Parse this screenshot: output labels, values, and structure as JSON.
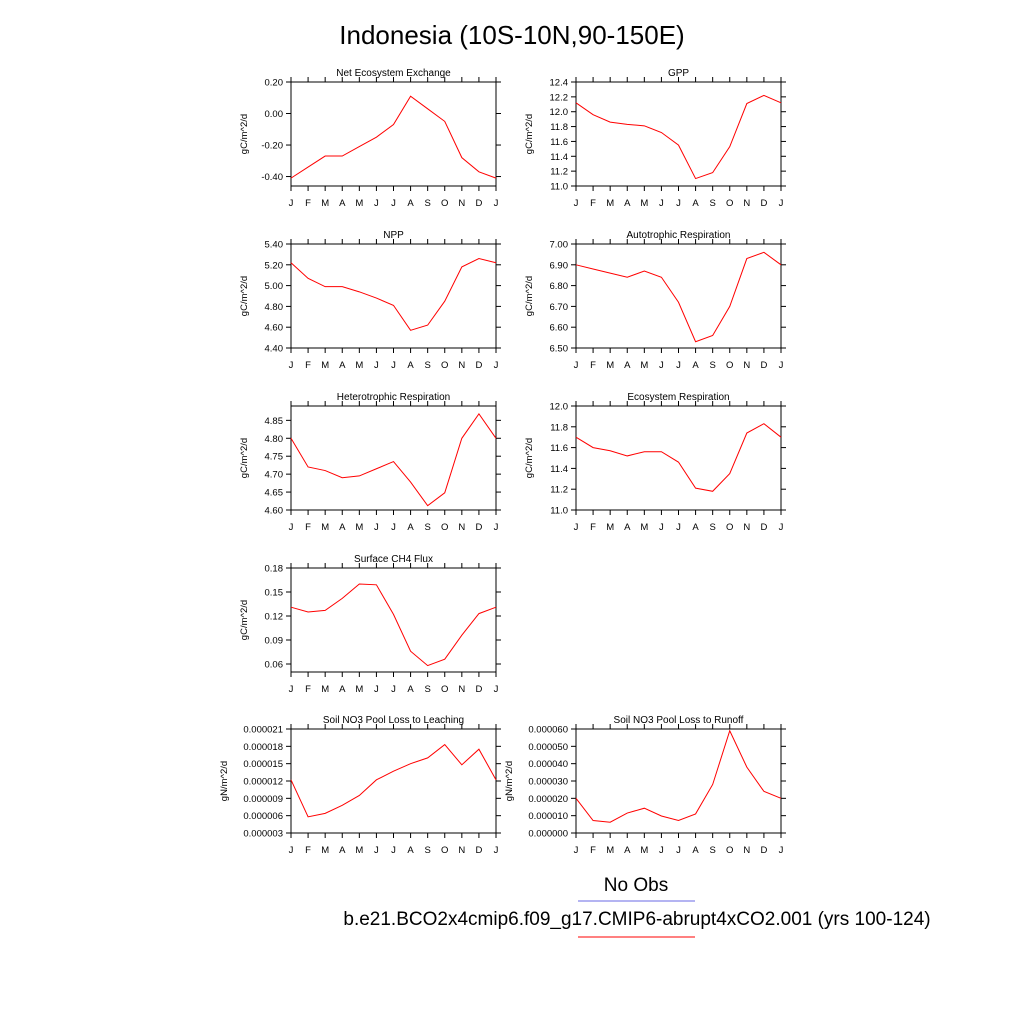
{
  "title": "Indonesia (10S-10N,90-150E)",
  "legend": {
    "obs_label": "No Obs",
    "obs_color": "#6a6ae6",
    "model_label": "b.e21.BCO2x4cmip6.f09_g17.CMIP6-abrupt4xCO2.001 (yrs 100-124)",
    "model_color": "#ff0000"
  },
  "line_color": "#ff0000",
  "chart_data": [
    {
      "type": "line",
      "title": "Net Ecosystem Exchange",
      "ylabel": "gC/m^2/d",
      "categories": [
        "J",
        "F",
        "M",
        "A",
        "M",
        "J",
        "J",
        "A",
        "S",
        "O",
        "N",
        "D",
        "J"
      ],
      "values": [
        -0.41,
        -0.34,
        -0.27,
        -0.27,
        -0.21,
        -0.15,
        -0.07,
        0.11,
        0.03,
        -0.05,
        -0.28,
        -0.37,
        -0.41
      ],
      "ylim": [
        -0.46,
        0.2
      ],
      "yticks": [
        "0.20",
        "0.00",
        "-0.20",
        "-0.40"
      ],
      "ytick_values": [
        0.2,
        0.0,
        -0.2,
        -0.4
      ]
    },
    {
      "type": "line",
      "title": "GPP",
      "ylabel": "gC/m^2/d",
      "categories": [
        "J",
        "F",
        "M",
        "A",
        "M",
        "J",
        "J",
        "A",
        "S",
        "O",
        "N",
        "D",
        "J"
      ],
      "values": [
        12.12,
        11.96,
        11.86,
        11.83,
        11.81,
        11.72,
        11.55,
        11.1,
        11.18,
        11.53,
        12.11,
        12.22,
        12.12
      ],
      "ylim": [
        11.0,
        12.4
      ],
      "yticks": [
        "12.4",
        "12.2",
        "12.0",
        "11.8",
        "11.6",
        "11.4",
        "11.2",
        "11.0"
      ],
      "ytick_values": [
        12.4,
        12.2,
        12.0,
        11.8,
        11.6,
        11.4,
        11.2,
        11.0
      ]
    },
    {
      "type": "line",
      "title": "NPP",
      "ylabel": "gC/m^2/d",
      "categories": [
        "J",
        "F",
        "M",
        "A",
        "M",
        "J",
        "J",
        "A",
        "S",
        "O",
        "N",
        "D",
        "J"
      ],
      "values": [
        5.22,
        5.07,
        4.99,
        4.99,
        4.94,
        4.88,
        4.81,
        4.57,
        4.62,
        4.85,
        5.18,
        5.26,
        5.22
      ],
      "ylim": [
        4.4,
        5.4
      ],
      "yticks": [
        "5.40",
        "5.20",
        "5.00",
        "4.80",
        "4.60",
        "4.40"
      ],
      "ytick_values": [
        5.4,
        5.2,
        5.0,
        4.8,
        4.6,
        4.4
      ]
    },
    {
      "type": "line",
      "title": "Autotrophic Respiration",
      "ylabel": "gC/m^2/d",
      "categories": [
        "J",
        "F",
        "M",
        "A",
        "M",
        "J",
        "J",
        "A",
        "S",
        "O",
        "N",
        "D",
        "J"
      ],
      "values": [
        6.9,
        6.88,
        6.86,
        6.84,
        6.87,
        6.84,
        6.72,
        6.53,
        6.56,
        6.7,
        6.93,
        6.96,
        6.9
      ],
      "ylim": [
        6.5,
        7.0
      ],
      "yticks": [
        "7.00",
        "6.90",
        "6.80",
        "6.70",
        "6.60",
        "6.50"
      ],
      "ytick_values": [
        7.0,
        6.9,
        6.8,
        6.7,
        6.6,
        6.5
      ]
    },
    {
      "type": "line",
      "title": "Heterotrophic Respiration",
      "ylabel": "gC/m^2/d",
      "categories": [
        "J",
        "F",
        "M",
        "A",
        "M",
        "J",
        "J",
        "A",
        "S",
        "O",
        "N",
        "D",
        "J"
      ],
      "values": [
        4.8,
        4.72,
        4.71,
        4.69,
        4.695,
        4.715,
        4.735,
        4.678,
        4.612,
        4.648,
        4.8,
        4.868,
        4.8
      ],
      "ylim": [
        4.6,
        4.89
      ],
      "yticks": [
        "4.85",
        "4.80",
        "4.75",
        "4.70",
        "4.65",
        "4.60"
      ],
      "ytick_values": [
        4.85,
        4.8,
        4.75,
        4.7,
        4.65,
        4.6
      ]
    },
    {
      "type": "line",
      "title": "Ecosystem Respiration",
      "ylabel": "gC/m^2/d",
      "categories": [
        "J",
        "F",
        "M",
        "A",
        "M",
        "J",
        "J",
        "A",
        "S",
        "O",
        "N",
        "D",
        "J"
      ],
      "values": [
        11.7,
        11.6,
        11.57,
        11.52,
        11.56,
        11.56,
        11.46,
        11.21,
        11.18,
        11.35,
        11.74,
        11.83,
        11.7
      ],
      "ylim": [
        11.0,
        12.0
      ],
      "yticks": [
        "12.0",
        "11.8",
        "11.6",
        "11.4",
        "11.2",
        "11.0"
      ],
      "ytick_values": [
        12.0,
        11.8,
        11.6,
        11.4,
        11.2,
        11.0
      ]
    },
    {
      "type": "line",
      "title": "Surface CH4 Flux",
      "ylabel": "gC/m^2/d",
      "categories": [
        "J",
        "F",
        "M",
        "A",
        "M",
        "J",
        "J",
        "A",
        "S",
        "O",
        "N",
        "D",
        "J"
      ],
      "values": [
        0.131,
        0.125,
        0.127,
        0.142,
        0.16,
        0.159,
        0.122,
        0.076,
        0.058,
        0.066,
        0.096,
        0.123,
        0.131
      ],
      "ylim": [
        0.05,
        0.18
      ],
      "yticks": [
        "0.18",
        "0.15",
        "0.12",
        "0.09",
        "0.06"
      ],
      "ytick_values": [
        0.18,
        0.15,
        0.12,
        0.09,
        0.06
      ]
    },
    {
      "type": "line",
      "title": "Soil NO3 Pool Loss to Leaching",
      "ylabel": "gN/m^2/d",
      "categories": [
        "J",
        "F",
        "M",
        "A",
        "M",
        "J",
        "J",
        "A",
        "S",
        "O",
        "N",
        "D",
        "J"
      ],
      "values": [
        1.22e-05,
        5.8e-06,
        6.4e-06,
        7.8e-06,
        9.5e-06,
        1.22e-05,
        1.37e-05,
        1.5e-05,
        1.6e-05,
        1.83e-05,
        1.48e-05,
        1.75e-05,
        1.22e-05
      ],
      "ylim": [
        3e-06,
        2.1e-05
      ],
      "yticks": [
        "0.000021",
        "0.000018",
        "0.000015",
        "0.000012",
        "0.000009",
        "0.000006",
        "0.000003"
      ],
      "ytick_values": [
        2.1e-05,
        1.8e-05,
        1.5e-05,
        1.2e-05,
        9e-06,
        6e-06,
        3e-06
      ]
    },
    {
      "type": "line",
      "title": "Soil NO3 Pool Loss to Runoff",
      "ylabel": "gN/m^2/d",
      "categories": [
        "J",
        "F",
        "M",
        "A",
        "M",
        "J",
        "J",
        "A",
        "S",
        "O",
        "N",
        "D",
        "J"
      ],
      "values": [
        2e-05,
        7.2e-06,
        6.2e-06,
        1.15e-05,
        1.43e-05,
        9.8e-06,
        7.2e-06,
        1.1e-05,
        2.8e-05,
        5.9e-05,
        3.8e-05,
        2.4e-05,
        2e-05
      ],
      "ylim": [
        0.0,
        6e-05
      ],
      "yticks": [
        "0.000060",
        "0.000050",
        "0.000040",
        "0.000030",
        "0.000020",
        "0.000010",
        "0.000000"
      ],
      "ytick_values": [
        6e-05,
        5e-05,
        4e-05,
        3e-05,
        2e-05,
        1e-05,
        0.0
      ]
    }
  ]
}
